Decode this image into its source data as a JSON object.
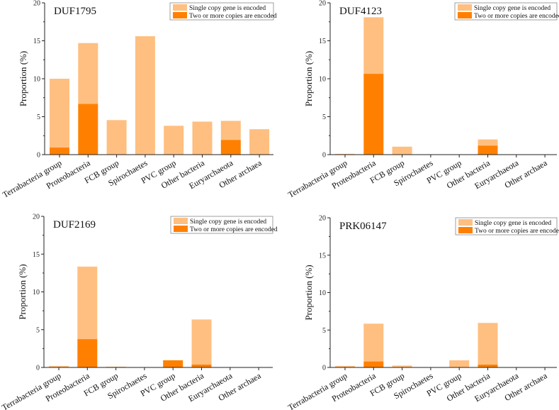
{
  "chart_data": [
    {
      "type": "bar",
      "stacked": true,
      "title": "DUF1795",
      "xlabel": "",
      "ylabel": "Proportion (%)",
      "ylim": [
        0,
        20
      ],
      "yticks": [
        0,
        5,
        10,
        15,
        20
      ],
      "categories": [
        "Terrabacteria group",
        "Proteobacteria",
        "FCB group",
        "Spirochaetes",
        "PVC group",
        "Other bacteria",
        "Euryarchaeota",
        "Other archaea"
      ],
      "series": [
        {
          "name": "Two or more copies are encoded",
          "color": "#ff8000",
          "values": [
            0.95,
            6.7,
            0.05,
            0,
            0,
            0,
            1.95,
            0
          ]
        },
        {
          "name": "Single copy gene is encoded",
          "color": "#ffbf80",
          "values": [
            9.05,
            8.0,
            4.5,
            15.6,
            3.8,
            4.35,
            2.5,
            3.35
          ]
        }
      ],
      "legend": "top-right"
    },
    {
      "type": "bar",
      "stacked": true,
      "title": "DUF4123",
      "xlabel": "",
      "ylabel": "Proportion (%)",
      "ylim": [
        0,
        20
      ],
      "yticks": [
        0,
        5,
        10,
        15,
        20
      ],
      "categories": [
        "Terrabacteria group",
        "Proteobacteria",
        "FCB group",
        "Spirochaetes",
        "PVC group",
        "Other bacteria",
        "Euryarchaeota",
        "Other archaea"
      ],
      "series": [
        {
          "name": "Two or more copies are encoded",
          "color": "#ff8000",
          "values": [
            0.05,
            10.65,
            0,
            0,
            0,
            1.2,
            0,
            0
          ]
        },
        {
          "name": "Single copy gene is encoded",
          "color": "#ffbf80",
          "values": [
            0.05,
            7.45,
            1.05,
            0,
            0,
            0.8,
            0,
            0
          ]
        }
      ],
      "legend": "top-right"
    },
    {
      "type": "bar",
      "stacked": true,
      "title": "DUF2169",
      "xlabel": "",
      "ylabel": "Proportion (%)",
      "ylim": [
        0,
        20
      ],
      "yticks": [
        0,
        5,
        10,
        15,
        20
      ],
      "categories": [
        "Terrabacteria group",
        "Proteobacteria",
        "FCB group",
        "Spirochaetes",
        "PVC group",
        "Other bacteria",
        "Euryarchaeota",
        "Other archaea"
      ],
      "series": [
        {
          "name": "Two or more copies are encoded",
          "color": "#ff8000",
          "values": [
            0,
            3.75,
            0,
            0,
            0.95,
            0.4,
            0,
            0
          ]
        },
        {
          "name": "Single copy gene is encoded",
          "color": "#ffbf80",
          "values": [
            0.2,
            9.6,
            0.1,
            0,
            0,
            5.95,
            0,
            0
          ]
        }
      ],
      "legend": "top-right"
    },
    {
      "type": "bar",
      "stacked": true,
      "title": "PRK06147",
      "xlabel": "",
      "ylabel": "Proportion (%)",
      "ylim": [
        0,
        20
      ],
      "yticks": [
        0,
        5,
        10,
        15,
        20
      ],
      "categories": [
        "Terrabacteria group",
        "Proteobacteria",
        "FCB group",
        "Spirochaetes",
        "PVC group",
        "Other bacteria",
        "Euryarchaeota",
        "Other archaea"
      ],
      "series": [
        {
          "name": "Two or more copies are encoded",
          "color": "#ff8000",
          "values": [
            0,
            0.8,
            0,
            0,
            0,
            0.4,
            0,
            0
          ]
        },
        {
          "name": "Single copy gene is encoded",
          "color": "#ffbf80",
          "values": [
            0.2,
            5.05,
            0.25,
            0,
            0.95,
            5.55,
            0,
            0
          ]
        }
      ],
      "legend": "top-right"
    }
  ]
}
